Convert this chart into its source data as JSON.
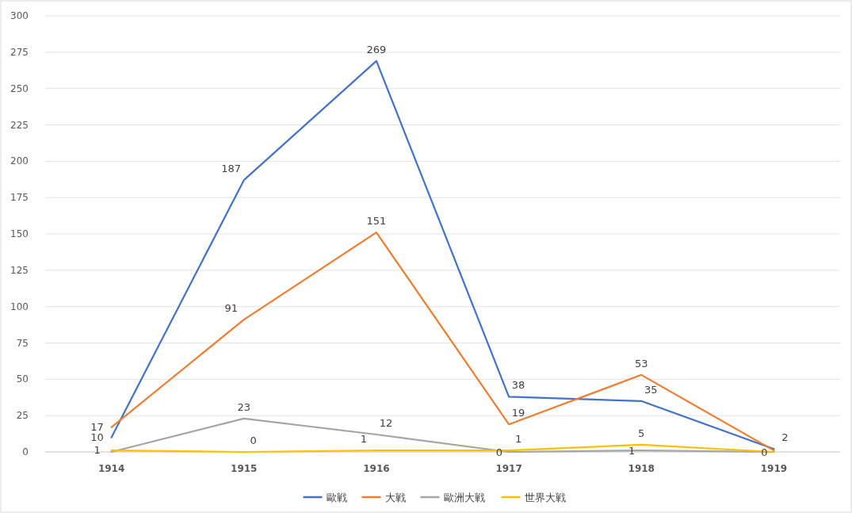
{
  "chart_data": {
    "type": "line",
    "categories": [
      "1914",
      "1915",
      "1916",
      "1917",
      "1918",
      "1919"
    ],
    "series": [
      {
        "name": "歐戦",
        "color": "#4472c4",
        "values": [
          10,
          187,
          269,
          38,
          35,
          2
        ],
        "value_labels": [
          "10",
          "187",
          "269",
          "38",
          "35",
          "2"
        ]
      },
      {
        "name": "大戦",
        "color": "#ed7d31",
        "values": [
          17,
          91,
          151,
          19,
          53,
          1
        ],
        "value_labels": [
          "17",
          "91",
          "151",
          "19",
          "53",
          null
        ]
      },
      {
        "name": "歐洲大戦",
        "color": "#a5a5a5",
        "values": [
          0,
          23,
          12,
          0,
          1,
          0
        ],
        "value_labels": [
          null,
          "23",
          "12",
          "0",
          "1",
          "0"
        ]
      },
      {
        "name": "世界大戦",
        "color": "#ffc000",
        "values": [
          1,
          0,
          1,
          1,
          5,
          0
        ],
        "value_labels": [
          "1",
          "0",
          "1",
          "1",
          "5",
          null
        ]
      }
    ],
    "ylim": [
      0,
      300
    ],
    "yticks": [
      0,
      25,
      50,
      75,
      100,
      125,
      150,
      175,
      200,
      225,
      250,
      275,
      300
    ],
    "grid": "y",
    "legend": "bottom",
    "marker": "none",
    "line_style": "solid"
  }
}
